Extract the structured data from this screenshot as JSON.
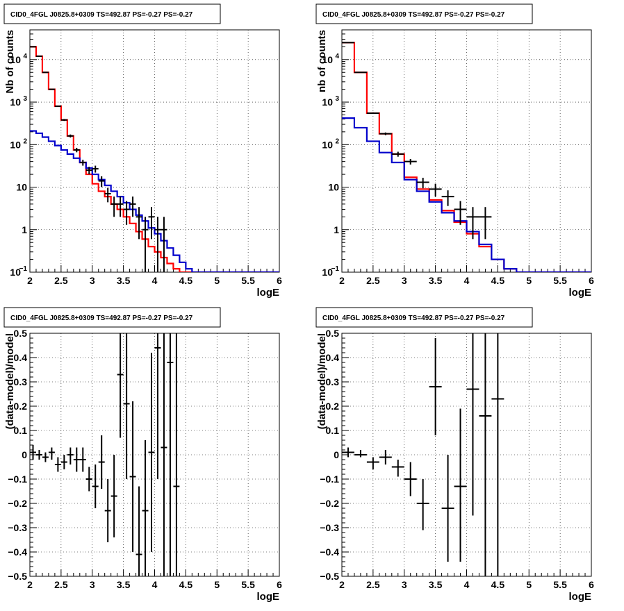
{
  "panels": [
    {
      "id": "top-left",
      "title": "CID0_4FGL J0825.8+0309 TS=492.87 PS=-0.27 PS=-0.27",
      "chart_data": {
        "type": "histogram",
        "xlabel": "logE",
        "ylabel": "Nb of counts",
        "xlim": [
          2,
          6
        ],
        "ylim": [
          0.1,
          50000
        ],
        "ylog": true,
        "grid": true,
        "xticks": [
          "2",
          "2.5",
          "3",
          "3.5",
          "4",
          "4.5",
          "5",
          "5.5",
          "6"
        ],
        "yticks": [
          {
            "value": 0.1,
            "label": "10",
            "sup": "−1"
          },
          {
            "value": 1,
            "label": "1",
            "sup": ""
          },
          {
            "value": 10,
            "label": "10",
            "sup": ""
          },
          {
            "value": 100,
            "label": "10",
            "sup": "2"
          },
          {
            "value": 1000,
            "label": "10",
            "sup": "3"
          },
          {
            "value": 10000,
            "label": "10",
            "sup": "4"
          }
        ],
        "bin_width": 0.1,
        "series": [
          {
            "color": "#ff0000",
            "style": "step",
            "values": [
              20000,
              12000,
              5000,
              2000,
              800,
              380,
              160,
              75,
              38,
              20,
              12,
              8,
              6,
              4,
              3,
              2,
              1.4,
              0.9,
              0.6,
              0.4,
              0.3,
              0.22,
              0.16,
              0.12,
              0.1,
              0.1,
              0.1,
              0.1,
              0.1,
              0.1,
              0.1,
              0.1,
              0.1,
              0.1,
              0.1,
              0.1,
              0.1,
              0.1,
              0.1,
              0.1
            ]
          },
          {
            "color": "#0000cc",
            "style": "step",
            "values": [
              210,
              185,
              150,
              120,
              95,
              75,
              60,
              48,
              38,
              28,
              20,
              15,
              11,
              8,
              6,
              4.3,
              3,
              2.2,
              1.6,
              1.1,
              0.8,
              0.55,
              0.37,
              0.25,
              0.17,
              0.12,
              0.1,
              0.1,
              0.1,
              0.1,
              0.1,
              0.1,
              0.1,
              0.1,
              0.1,
              0.1,
              0.1,
              0.1,
              0.1,
              0.1
            ]
          },
          {
            "color": "#000000",
            "style": "errorbar",
            "points": [
              {
                "x": 2.05,
                "y": 20000,
                "lo": 19800,
                "hi": 20200
              },
              {
                "x": 2.15,
                "y": 12000,
                "lo": 11900,
                "hi": 12100
              },
              {
                "x": 2.25,
                "y": 5000,
                "lo": 4930,
                "hi": 5070
              },
              {
                "x": 2.35,
                "y": 2000,
                "lo": 1955,
                "hi": 2045
              },
              {
                "x": 2.45,
                "y": 800,
                "lo": 772,
                "hi": 828
              },
              {
                "x": 2.55,
                "y": 380,
                "lo": 360,
                "hi": 400
              },
              {
                "x": 2.65,
                "y": 160,
                "lo": 147,
                "hi": 173
              },
              {
                "x": 2.75,
                "y": 75,
                "lo": 66,
                "hi": 84
              },
              {
                "x": 2.85,
                "y": 38,
                "lo": 32,
                "hi": 44
              },
              {
                "x": 2.95,
                "y": 25,
                "lo": 20,
                "hi": 30
              },
              {
                "x": 3.05,
                "y": 27,
                "lo": 22,
                "hi": 32
              },
              {
                "x": 3.15,
                "y": 14,
                "lo": 10,
                "hi": 18
              },
              {
                "x": 3.25,
                "y": 7,
                "lo": 4.4,
                "hi": 9.6
              },
              {
                "x": 3.35,
                "y": 4,
                "lo": 2,
                "hi": 6
              },
              {
                "x": 3.45,
                "y": 4,
                "lo": 2,
                "hi": 6
              },
              {
                "x": 3.55,
                "y": 3,
                "lo": 1.3,
                "hi": 4.7
              },
              {
                "x": 3.65,
                "y": 4,
                "lo": 2,
                "hi": 6
              },
              {
                "x": 3.75,
                "y": 2,
                "lo": 0.6,
                "hi": 3.4
              },
              {
                "x": 3.85,
                "y": 1,
                "lo": 0.1,
                "hi": 2
              },
              {
                "x": 3.95,
                "y": 2,
                "lo": 0.6,
                "hi": 3.4
              },
              {
                "x": 4.05,
                "y": 1,
                "lo": 0.1,
                "hi": 2
              },
              {
                "x": 4.15,
                "y": 1,
                "lo": 0.1,
                "hi": 2
              }
            ]
          }
        ]
      }
    },
    {
      "id": "top-right",
      "title": "CID0_4FGL J0825.8+0309 TS=492.87 PS=-0.27 PS=-0.27",
      "chart_data": {
        "type": "histogram",
        "xlabel": "logE",
        "ylabel": "nb of counts",
        "xlim": [
          2,
          6
        ],
        "ylim": [
          0.1,
          50000
        ],
        "ylog": true,
        "grid": true,
        "xticks": [
          "2",
          "2.5",
          "3",
          "3.5",
          "4",
          "4.5",
          "5",
          "5.5",
          "6"
        ],
        "yticks": [
          {
            "value": 0.1,
            "label": "10",
            "sup": "−1"
          },
          {
            "value": 1,
            "label": "1",
            "sup": ""
          },
          {
            "value": 10,
            "label": "10",
            "sup": ""
          },
          {
            "value": 100,
            "label": "10",
            "sup": "2"
          },
          {
            "value": 1000,
            "label": "10",
            "sup": "3"
          },
          {
            "value": 10000,
            "label": "10",
            "sup": "4"
          }
        ],
        "bin_width": 0.2,
        "series": [
          {
            "color": "#ff0000",
            "style": "step",
            "values": [
              25000,
              5000,
              550,
              180,
              60,
              17,
              9,
              5,
              2.8,
              1.5,
              0.8,
              0.4,
              0.2,
              0.12,
              0.1,
              0.1,
              0.1,
              0.1,
              0.1,
              0.1
            ]
          },
          {
            "color": "#0000cc",
            "style": "step",
            "values": [
              420,
              250,
              120,
              65,
              38,
              15,
              8,
              4.5,
              2.5,
              1.6,
              0.9,
              0.45,
              0.2,
              0.12,
              0.1,
              0.1,
              0.1,
              0.1,
              0.1,
              0.1
            ]
          },
          {
            "color": "#000000",
            "style": "errorbar",
            "points": [
              {
                "x": 2.1,
                "y": 25000,
                "lo": 24850,
                "hi": 25150
              },
              {
                "x": 2.3,
                "y": 5000,
                "lo": 4930,
                "hi": 5070
              },
              {
                "x": 2.5,
                "y": 550,
                "lo": 527,
                "hi": 573
              },
              {
                "x": 2.7,
                "y": 180,
                "lo": 167,
                "hi": 193
              },
              {
                "x": 2.9,
                "y": 60,
                "lo": 52,
                "hi": 68
              },
              {
                "x": 3.1,
                "y": 40,
                "lo": 34,
                "hi": 46
              },
              {
                "x": 3.3,
                "y": 13,
                "lo": 9.4,
                "hi": 16.6
              },
              {
                "x": 3.5,
                "y": 9,
                "lo": 6,
                "hi": 12
              },
              {
                "x": 3.7,
                "y": 6,
                "lo": 3.6,
                "hi": 8.4
              },
              {
                "x": 3.9,
                "y": 3,
                "lo": 1.3,
                "hi": 4.7
              },
              {
                "x": 4.1,
                "y": 2,
                "lo": 0.6,
                "hi": 3.4
              },
              {
                "x": 4.3,
                "y": 2,
                "lo": 0.6,
                "hi": 3.4
              }
            ]
          }
        ]
      }
    },
    {
      "id": "bottom-left",
      "title": "CID0_4FGL J0825.8+0309 TS=492.87 PS=-0.27 PS=-0.27",
      "chart_data": {
        "type": "scatter",
        "xlabel": "logE",
        "ylabel": "(data-model)/model",
        "xlim": [
          2,
          6
        ],
        "ylim": [
          -0.5,
          0.5
        ],
        "ylog": false,
        "grid": true,
        "xticks": [
          "2",
          "2.5",
          "3",
          "3.5",
          "4",
          "4.5",
          "5",
          "5.5",
          "6"
        ],
        "yticks": [
          {
            "value": -0.5,
            "label": "−0.5",
            "sup": ""
          },
          {
            "value": -0.4,
            "label": "−0.4",
            "sup": ""
          },
          {
            "value": -0.3,
            "label": "−0.3",
            "sup": ""
          },
          {
            "value": -0.2,
            "label": "−0.2",
            "sup": ""
          },
          {
            "value": -0.1,
            "label": "−0.1",
            "sup": ""
          },
          {
            "value": 0,
            "label": "0",
            "sup": ""
          },
          {
            "value": 0.1,
            "label": "0.1",
            "sup": ""
          },
          {
            "value": 0.2,
            "label": "0.2",
            "sup": ""
          },
          {
            "value": 0.3,
            "label": "0.3",
            "sup": ""
          },
          {
            "value": 0.4,
            "label": "0.4",
            "sup": ""
          },
          {
            "value": 0.5,
            "label": "0.5",
            "sup": ""
          }
        ],
        "bin_width": 0.1,
        "series": [
          {
            "color": "#000000",
            "style": "errorbar",
            "points": [
              {
                "x": 2.05,
                "y": 0.01,
                "lo": -0.02,
                "hi": 0.04
              },
              {
                "x": 2.15,
                "y": 0.0,
                "lo": -0.02,
                "hi": 0.02
              },
              {
                "x": 2.25,
                "y": -0.01,
                "lo": -0.03,
                "hi": 0.01
              },
              {
                "x": 2.35,
                "y": 0.01,
                "lo": -0.02,
                "hi": 0.03
              },
              {
                "x": 2.45,
                "y": -0.04,
                "lo": -0.07,
                "hi": -0.01
              },
              {
                "x": 2.55,
                "y": -0.03,
                "lo": -0.06,
                "hi": 0.0
              },
              {
                "x": 2.65,
                "y": 0.0,
                "lo": -0.04,
                "hi": 0.03
              },
              {
                "x": 2.75,
                "y": -0.02,
                "lo": -0.07,
                "hi": 0.03
              },
              {
                "x": 2.85,
                "y": -0.02,
                "lo": -0.07,
                "hi": 0.03
              },
              {
                "x": 2.95,
                "y": -0.1,
                "lo": -0.15,
                "hi": -0.05
              },
              {
                "x": 3.05,
                "y": -0.13,
                "lo": -0.22,
                "hi": -0.04
              },
              {
                "x": 3.15,
                "y": -0.03,
                "lo": -0.14,
                "hi": 0.08
              },
              {
                "x": 3.25,
                "y": -0.23,
                "lo": -0.36,
                "hi": -0.1
              },
              {
                "x": 3.35,
                "y": -0.17,
                "lo": -0.34,
                "hi": 0.0
              },
              {
                "x": 3.45,
                "y": 0.33,
                "lo": 0.07,
                "hi": 0.6
              },
              {
                "x": 3.55,
                "y": 0.21,
                "lo": -0.1,
                "hi": 0.5
              },
              {
                "x": 3.65,
                "y": -0.09,
                "lo": -0.4,
                "hi": 0.22
              },
              {
                "x": 3.75,
                "y": -0.41,
                "lo": -0.6,
                "hi": -0.13
              },
              {
                "x": 3.85,
                "y": -0.23,
                "lo": -0.5,
                "hi": 0.06
              },
              {
                "x": 3.95,
                "y": 0.01,
                "lo": -0.4,
                "hi": 0.42
              },
              {
                "x": 4.05,
                "y": 0.44,
                "lo": -0.1,
                "hi": 0.6
              },
              {
                "x": 4.15,
                "y": 0.03,
                "lo": -0.5,
                "hi": 0.6
              },
              {
                "x": 4.25,
                "y": 0.38,
                "lo": -0.6,
                "hi": 0.6
              },
              {
                "x": 4.35,
                "y": -0.13,
                "lo": -0.6,
                "hi": 0.6
              }
            ]
          }
        ]
      }
    },
    {
      "id": "bottom-right",
      "title": "CID0_4FGL J0825.8+0309 TS=492.87 PS=-0.27 PS=-0.27",
      "chart_data": {
        "type": "scatter",
        "xlabel": "logE",
        "ylabel": "(data-model)/model",
        "xlim": [
          2,
          6
        ],
        "ylim": [
          -0.5,
          0.5
        ],
        "ylog": false,
        "grid": true,
        "xticks": [
          "2",
          "2.5",
          "3",
          "3.5",
          "4",
          "4.5",
          "5",
          "5.5",
          "6"
        ],
        "yticks": [
          {
            "value": -0.5,
            "label": "−0.5",
            "sup": ""
          },
          {
            "value": -0.4,
            "label": "−0.4",
            "sup": ""
          },
          {
            "value": -0.3,
            "label": "−0.3",
            "sup": ""
          },
          {
            "value": -0.2,
            "label": "−0.2",
            "sup": ""
          },
          {
            "value": -0.1,
            "label": "−0.1",
            "sup": ""
          },
          {
            "value": 0,
            "label": "0",
            "sup": ""
          },
          {
            "value": 0.1,
            "label": "0.1",
            "sup": ""
          },
          {
            "value": 0.2,
            "label": "0.2",
            "sup": ""
          },
          {
            "value": 0.3,
            "label": "0.3",
            "sup": ""
          },
          {
            "value": 0.4,
            "label": "0.4",
            "sup": ""
          },
          {
            "value": 0.5,
            "label": "0.5",
            "sup": ""
          }
        ],
        "bin_width": 0.2,
        "series": [
          {
            "color": "#000000",
            "style": "errorbar",
            "points": [
              {
                "x": 2.1,
                "y": 0.01,
                "lo": -0.01,
                "hi": 0.03
              },
              {
                "x": 2.3,
                "y": 0.0,
                "lo": -0.01,
                "hi": 0.02
              },
              {
                "x": 2.5,
                "y": -0.03,
                "lo": -0.06,
                "hi": -0.01
              },
              {
                "x": 2.7,
                "y": -0.01,
                "lo": -0.04,
                "hi": 0.02
              },
              {
                "x": 2.9,
                "y": -0.05,
                "lo": -0.09,
                "hi": -0.02
              },
              {
                "x": 3.1,
                "y": -0.1,
                "lo": -0.17,
                "hi": -0.03
              },
              {
                "x": 3.3,
                "y": -0.2,
                "lo": -0.31,
                "hi": -0.1
              },
              {
                "x": 3.5,
                "y": 0.28,
                "lo": 0.08,
                "hi": 0.48
              },
              {
                "x": 3.7,
                "y": -0.22,
                "lo": -0.44,
                "hi": 0.0
              },
              {
                "x": 3.9,
                "y": -0.13,
                "lo": -0.44,
                "hi": 0.19
              },
              {
                "x": 4.1,
                "y": 0.27,
                "lo": -0.25,
                "hi": 0.6
              },
              {
                "x": 4.3,
                "y": 0.16,
                "lo": -0.6,
                "hi": 0.6
              },
              {
                "x": 4.5,
                "y": 0.23,
                "lo": -0.6,
                "hi": 0.6
              }
            ]
          }
        ]
      }
    }
  ]
}
